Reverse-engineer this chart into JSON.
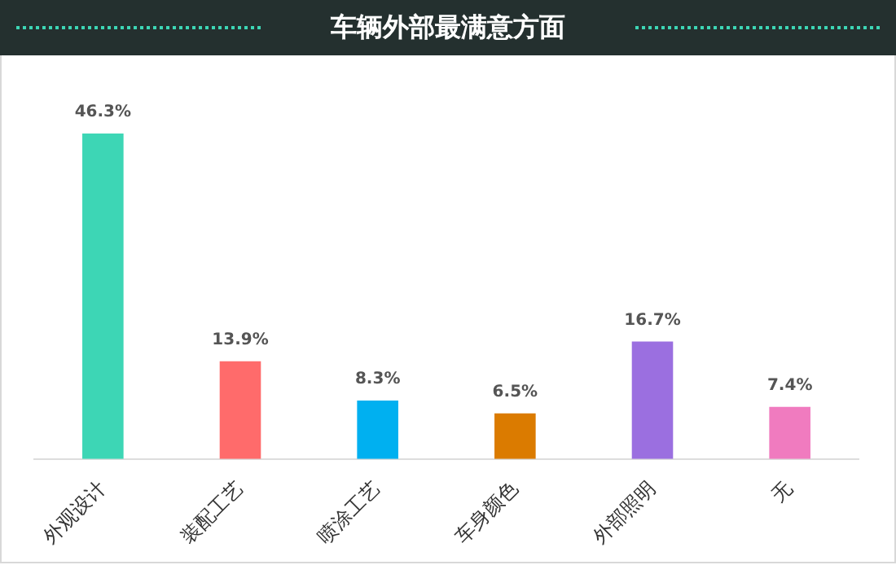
{
  "chart_data": {
    "type": "bar",
    "title": "车辆外部最满意方面",
    "categories": [
      "外观设计",
      "装配工艺",
      "喷涂工艺",
      "车身颜色",
      "外部照明",
      "无"
    ],
    "values": [
      46.3,
      13.9,
      8.3,
      6.5,
      16.7,
      7.4
    ],
    "colors": [
      "#3dd6b5",
      "#ff6b6b",
      "#00b0f0",
      "#db7b00",
      "#9b6fe0",
      "#f07bbf"
    ],
    "value_labels": [
      "46.3%",
      "13.9%",
      "8.3%",
      "6.5%",
      "16.7%",
      "7.4%"
    ]
  }
}
